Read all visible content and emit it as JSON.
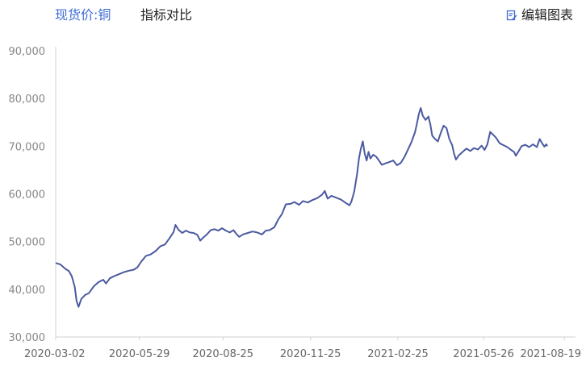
{
  "header": {
    "active_tab": "现货价:铜",
    "compare_tab": "指标对比",
    "edit_label": "编辑图表",
    "accent_color": "#3d6bd4",
    "edit_icon": "edit-chart-icon"
  },
  "chart_data": {
    "type": "line",
    "title": "",
    "xlabel": "",
    "ylabel": "",
    "ylim": [
      30000,
      90000
    ],
    "y_ticks": [
      "90,000",
      "80,000",
      "70,000",
      "60,000",
      "50,000",
      "40,000",
      "30,000"
    ],
    "y_tick_values": [
      90000,
      80000,
      70000,
      60000,
      50000,
      40000,
      30000
    ],
    "x_ticks": [
      "2020-03-02",
      "2020-05-29",
      "2020-08-25",
      "2020-11-25",
      "2021-02-25",
      "2021-05-26",
      "2021-08-19"
    ],
    "x_tick_index": [
      0,
      88,
      176,
      268,
      360,
      450,
      535
    ],
    "x_range_index": [
      0,
      545
    ],
    "grid": false,
    "legend": "none",
    "line_color": "#4b5aa0",
    "series": [
      {
        "points": [
          [
            0,
            45500
          ],
          [
            5,
            45200
          ],
          [
            10,
            44300
          ],
          [
            14,
            43800
          ],
          [
            17,
            42700
          ],
          [
            20,
            40500
          ],
          [
            22,
            37500
          ],
          [
            24,
            36300
          ],
          [
            27,
            38000
          ],
          [
            31,
            38800
          ],
          [
            35,
            39200
          ],
          [
            40,
            40600
          ],
          [
            45,
            41500
          ],
          [
            50,
            42000
          ],
          [
            53,
            41200
          ],
          [
            57,
            42300
          ],
          [
            62,
            42800
          ],
          [
            67,
            43200
          ],
          [
            72,
            43600
          ],
          [
            77,
            43900
          ],
          [
            82,
            44100
          ],
          [
            86,
            44600
          ],
          [
            90,
            45800
          ],
          [
            95,
            47000
          ],
          [
            100,
            47300
          ],
          [
            105,
            48000
          ],
          [
            110,
            49000
          ],
          [
            115,
            49400
          ],
          [
            120,
            50800
          ],
          [
            124,
            52000
          ],
          [
            126,
            53500
          ],
          [
            129,
            52500
          ],
          [
            133,
            51800
          ],
          [
            137,
            52300
          ],
          [
            141,
            51900
          ],
          [
            145,
            51800
          ],
          [
            149,
            51400
          ],
          [
            152,
            50200
          ],
          [
            155,
            50800
          ],
          [
            159,
            51500
          ],
          [
            163,
            52400
          ],
          [
            167,
            52600
          ],
          [
            171,
            52300
          ],
          [
            175,
            52800
          ],
          [
            179,
            52300
          ],
          [
            183,
            51900
          ],
          [
            187,
            52400
          ],
          [
            190,
            51600
          ],
          [
            193,
            51000
          ],
          [
            197,
            51500
          ],
          [
            202,
            51800
          ],
          [
            207,
            52100
          ],
          [
            212,
            51900
          ],
          [
            217,
            51500
          ],
          [
            221,
            52300
          ],
          [
            225,
            52400
          ],
          [
            230,
            53000
          ],
          [
            234,
            54600
          ],
          [
            238,
            55800
          ],
          [
            242,
            57800
          ],
          [
            247,
            57900
          ],
          [
            251,
            58300
          ],
          [
            256,
            57700
          ],
          [
            260,
            58500
          ],
          [
            265,
            58200
          ],
          [
            270,
            58700
          ],
          [
            275,
            59100
          ],
          [
            280,
            59800
          ],
          [
            283,
            60600
          ],
          [
            286,
            59000
          ],
          [
            290,
            59600
          ],
          [
            295,
            59200
          ],
          [
            300,
            58800
          ],
          [
            305,
            58100
          ],
          [
            309,
            57600
          ],
          [
            311,
            58400
          ],
          [
            314,
            60500
          ],
          [
            317,
            64200
          ],
          [
            319,
            67500
          ],
          [
            321,
            69500
          ],
          [
            323,
            71000
          ],
          [
            325,
            68500
          ],
          [
            327,
            67000
          ],
          [
            329,
            68800
          ],
          [
            331,
            67400
          ],
          [
            334,
            68200
          ],
          [
            337,
            67800
          ],
          [
            340,
            67000
          ],
          [
            343,
            66100
          ],
          [
            347,
            66400
          ],
          [
            351,
            66700
          ],
          [
            355,
            67000
          ],
          [
            359,
            66000
          ],
          [
            363,
            66500
          ],
          [
            367,
            67800
          ],
          [
            371,
            69500
          ],
          [
            374,
            70800
          ],
          [
            378,
            73000
          ],
          [
            380,
            74800
          ],
          [
            382,
            76800
          ],
          [
            384,
            78000
          ],
          [
            386,
            76400
          ],
          [
            389,
            75500
          ],
          [
            392,
            76200
          ],
          [
            394,
            74600
          ],
          [
            396,
            72200
          ],
          [
            399,
            71500
          ],
          [
            402,
            71000
          ],
          [
            405,
            72800
          ],
          [
            408,
            74300
          ],
          [
            411,
            73800
          ],
          [
            414,
            71500
          ],
          [
            417,
            70200
          ],
          [
            419,
            68400
          ],
          [
            421,
            67200
          ],
          [
            424,
            68100
          ],
          [
            428,
            68800
          ],
          [
            432,
            69500
          ],
          [
            436,
            69000
          ],
          [
            440,
            69600
          ],
          [
            444,
            69300
          ],
          [
            448,
            70100
          ],
          [
            451,
            69200
          ],
          [
            454,
            70400
          ],
          [
            457,
            73000
          ],
          [
            460,
            72400
          ],
          [
            463,
            71800
          ],
          [
            467,
            70600
          ],
          [
            471,
            70200
          ],
          [
            475,
            69800
          ],
          [
            479,
            69200
          ],
          [
            482,
            68800
          ],
          [
            484,
            68000
          ],
          [
            487,
            69000
          ],
          [
            490,
            70000
          ],
          [
            494,
            70300
          ],
          [
            498,
            69800
          ],
          [
            502,
            70400
          ],
          [
            506,
            69800
          ],
          [
            509,
            71500
          ],
          [
            512,
            70500
          ],
          [
            514,
            69900
          ],
          [
            516,
            70400
          ],
          [
            517,
            70000
          ]
        ]
      }
    ]
  }
}
